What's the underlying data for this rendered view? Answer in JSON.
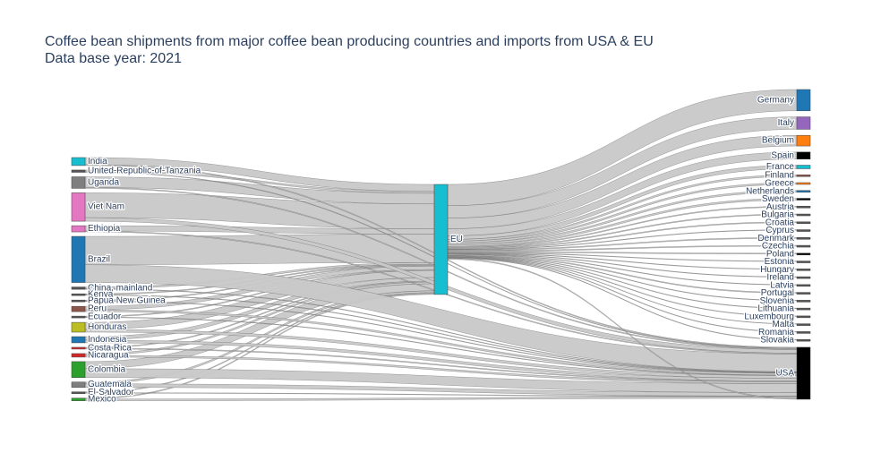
{
  "title": "Coffee bean shipments from major coffee bean producing countries and imports from USA & EU",
  "subtitle": "Data base year: 2021",
  "colors": {
    "link": "#c8c8c8",
    "text": "#2a3f5f",
    "node_outline": "#444444"
  },
  "chart_data": {
    "type": "sankey",
    "sources": [
      {
        "name": "India",
        "color": "#17becf"
      },
      {
        "name": "United-Republic-of-Tanzania",
        "color": "#555555"
      },
      {
        "name": "Uganda",
        "color": "#7f7f7f"
      },
      {
        "name": "Viet Nam",
        "color": "#e377c2"
      },
      {
        "name": "Ethiopia",
        "color": "#e377c2"
      },
      {
        "name": "Brazil",
        "color": "#1f77b4"
      },
      {
        "name": "China, mainland",
        "color": "#555555"
      },
      {
        "name": "Kenya",
        "color": "#555555"
      },
      {
        "name": "Papua New Guinea",
        "color": "#555555"
      },
      {
        "name": "Peru",
        "color": "#8c564b"
      },
      {
        "name": "Ecuador",
        "color": "#555555"
      },
      {
        "name": "Honduras",
        "color": "#bcbd22"
      },
      {
        "name": "Indonesia",
        "color": "#1f77b4"
      },
      {
        "name": "Costa Rica",
        "color": "#d62728"
      },
      {
        "name": "Nicaragua",
        "color": "#d62728"
      },
      {
        "name": "Colombia",
        "color": "#2ca02c"
      },
      {
        "name": "Guatemala",
        "color": "#7f7f7f"
      },
      {
        "name": "El-Salvador",
        "color": "#555555"
      },
      {
        "name": "Mexico",
        "color": "#2ca02c"
      }
    ],
    "hub": {
      "name": "EU",
      "color": "#17becf"
    },
    "targets": [
      {
        "name": "Germany",
        "color": "#1f77b4"
      },
      {
        "name": "Italy",
        "color": "#9467bd"
      },
      {
        "name": "Belgium",
        "color": "#ff7f0e"
      },
      {
        "name": "Spain",
        "color": "#000000"
      },
      {
        "name": "France",
        "color": "#17becf"
      },
      {
        "name": "Finland",
        "color": "#8c564b"
      },
      {
        "name": "Greece",
        "color": "#ff7f0e"
      },
      {
        "name": "Netherlands",
        "color": "#1f77b4"
      },
      {
        "name": "Sweden",
        "color": "#000000"
      },
      {
        "name": "Austria",
        "color": "#555555"
      },
      {
        "name": "Bulgaria",
        "color": "#555555"
      },
      {
        "name": "Croatia",
        "color": "#555555"
      },
      {
        "name": "Cyprus",
        "color": "#555555"
      },
      {
        "name": "Denmark",
        "color": "#555555"
      },
      {
        "name": "Czechia",
        "color": "#555555"
      },
      {
        "name": "Poland",
        "color": "#000000"
      },
      {
        "name": "Estonia",
        "color": "#555555"
      },
      {
        "name": "Hungary",
        "color": "#555555"
      },
      {
        "name": "Ireland",
        "color": "#555555"
      },
      {
        "name": "Latvia",
        "color": "#555555"
      },
      {
        "name": "Portugal",
        "color": "#555555"
      },
      {
        "name": "Slovenia",
        "color": "#555555"
      },
      {
        "name": "Lithuania",
        "color": "#555555"
      },
      {
        "name": "Luxembourg",
        "color": "#555555"
      },
      {
        "name": "Malta",
        "color": "#555555"
      },
      {
        "name": "Romania",
        "color": "#555555"
      },
      {
        "name": "Slovakia",
        "color": "#555555"
      },
      {
        "name": "USA",
        "color": "#000000"
      }
    ],
    "flows_to_eu": [
      {
        "source": "India",
        "value": 4
      },
      {
        "source": "United-Republic-of-Tanzania",
        "value": 1
      },
      {
        "source": "Uganda",
        "value": 6
      },
      {
        "source": "Viet Nam",
        "value": 14
      },
      {
        "source": "Ethiopia",
        "value": 3
      },
      {
        "source": "Brazil",
        "value": 16
      },
      {
        "source": "China, mainland",
        "value": 1
      },
      {
        "source": "Kenya",
        "value": 0.5
      },
      {
        "source": "Papua New Guinea",
        "value": 0.5
      },
      {
        "source": "Peru",
        "value": 2
      },
      {
        "source": "Ecuador",
        "value": 0.5
      },
      {
        "source": "Honduras",
        "value": 4
      },
      {
        "source": "Indonesia",
        "value": 2
      },
      {
        "source": "Costa Rica",
        "value": 0.5
      },
      {
        "source": "Nicaragua",
        "value": 1
      },
      {
        "source": "Colombia",
        "value": 4
      },
      {
        "source": "Guatemala",
        "value": 1
      },
      {
        "source": "El-Salvador",
        "value": 0.5
      },
      {
        "source": "Mexico",
        "value": 0.5
      }
    ],
    "flows_to_usa": [
      {
        "source": "India",
        "value": 0.5
      },
      {
        "source": "United-Republic-of-Tanzania",
        "value": 0.3
      },
      {
        "source": "Uganda",
        "value": 0.5
      },
      {
        "source": "Viet Nam",
        "value": 2
      },
      {
        "source": "Ethiopia",
        "value": 0.5
      },
      {
        "source": "Brazil",
        "value": 10
      },
      {
        "source": "China, mainland",
        "value": 0.3
      },
      {
        "source": "Kenya",
        "value": 0.3
      },
      {
        "source": "Papua New Guinea",
        "value": 0.3
      },
      {
        "source": "Peru",
        "value": 1
      },
      {
        "source": "Ecuador",
        "value": 0.3
      },
      {
        "source": "Honduras",
        "value": 1.5
      },
      {
        "source": "Indonesia",
        "value": 1.5
      },
      {
        "source": "Costa Rica",
        "value": 0.5
      },
      {
        "source": "Nicaragua",
        "value": 1
      },
      {
        "source": "Colombia",
        "value": 5
      },
      {
        "source": "Guatemala",
        "value": 2
      },
      {
        "source": "El-Salvador",
        "value": 0.3
      },
      {
        "source": "Mexico",
        "value": 1
      }
    ],
    "flows_from_eu": [
      {
        "target": "Germany",
        "value": 12
      },
      {
        "target": "Italy",
        "value": 7
      },
      {
        "target": "Belgium",
        "value": 6
      },
      {
        "target": "Spain",
        "value": 4
      },
      {
        "target": "France",
        "value": 2
      },
      {
        "target": "Finland",
        "value": 1
      },
      {
        "target": "Greece",
        "value": 1
      },
      {
        "target": "Netherlands",
        "value": 1
      },
      {
        "target": "Sweden",
        "value": 1
      },
      {
        "target": "Austria",
        "value": 0.5
      },
      {
        "target": "Bulgaria",
        "value": 0.5
      },
      {
        "target": "Croatia",
        "value": 0.5
      },
      {
        "target": "Cyprus",
        "value": 0.3
      },
      {
        "target": "Denmark",
        "value": 0.5
      },
      {
        "target": "Czechia",
        "value": 0.5
      },
      {
        "target": "Poland",
        "value": 0.5
      },
      {
        "target": "Estonia",
        "value": 0.3
      },
      {
        "target": "Hungary",
        "value": 0.3
      },
      {
        "target": "Ireland",
        "value": 0.3
      },
      {
        "target": "Latvia",
        "value": 0.3
      },
      {
        "target": "Portugal",
        "value": 0.5
      },
      {
        "target": "Slovenia",
        "value": 0.3
      },
      {
        "target": "Lithuania",
        "value": 0.3
      },
      {
        "target": "Luxembourg",
        "value": 0.3
      },
      {
        "target": "Malta",
        "value": 0.2
      },
      {
        "target": "Romania",
        "value": 0.3
      },
      {
        "target": "Slovakia",
        "value": 0.3
      },
      {
        "target": "USA",
        "value": 0.5
      }
    ]
  }
}
